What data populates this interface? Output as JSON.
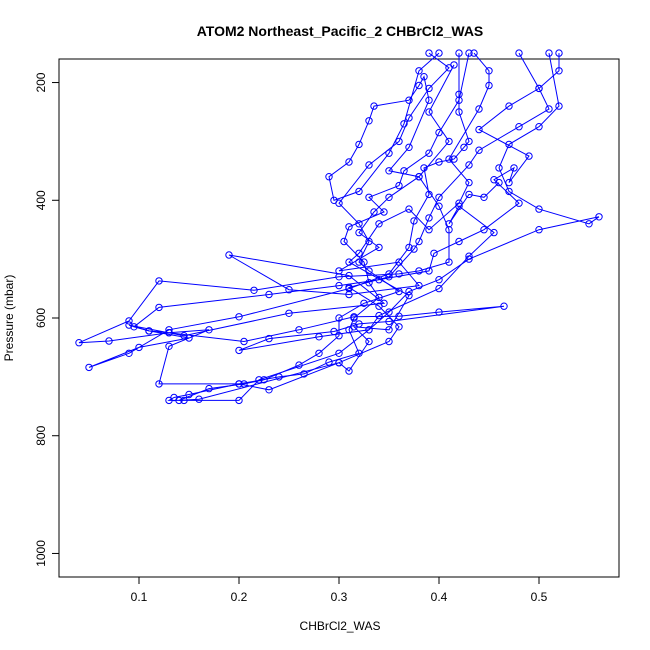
{
  "chart_data": {
    "type": "line",
    "title": "ATOM2 Northeast_Pacific_2 CHBrCl2_WAS",
    "xlabel": "CHBrCl2_WAS",
    "ylabel": "Pressure (mbar)",
    "xlim": [
      0.02,
      0.58
    ],
    "ylim": [
      1040,
      160
    ],
    "y_inverted": true,
    "grid": false,
    "marker": "open-circle",
    "line_color": "#0000ff",
    "xticks": [
      0.1,
      0.2,
      0.3,
      0.4,
      0.5
    ],
    "xtick_labels": [
      "0.1",
      "0.2",
      "0.3",
      "0.4",
      "0.5"
    ],
    "yticks": [
      200,
      400,
      600,
      800,
      1000
    ],
    "ytick_labels": [
      "200",
      "400",
      "600",
      "800",
      "1000"
    ],
    "series": [
      {
        "points": [
          [
            0.415,
            170
          ],
          [
            0.39,
            250
          ],
          [
            0.41,
            300
          ],
          [
            0.38,
            360
          ],
          [
            0.35,
            395
          ],
          [
            0.335,
            420
          ],
          [
            0.32,
            455
          ],
          [
            0.34,
            480
          ],
          [
            0.3,
            520
          ],
          [
            0.36,
            505
          ],
          [
            0.38,
            545
          ],
          [
            0.31,
            560
          ],
          [
            0.25,
            552
          ],
          [
            0.19,
            493
          ],
          [
            0.31,
            528
          ],
          [
            0.345,
            575
          ],
          [
            0.25,
            592
          ],
          [
            0.145,
            630
          ],
          [
            0.09,
            612
          ],
          [
            0.11,
            622
          ],
          [
            0.13,
            625
          ],
          [
            0.17,
            620
          ],
          [
            0.13,
            648
          ],
          [
            0.12,
            712
          ],
          [
            0.2,
            712
          ],
          [
            0.23,
            722
          ],
          [
            0.3,
            676
          ],
          [
            0.31,
            690
          ],
          [
            0.33,
            640
          ],
          [
            0.315,
            615
          ],
          [
            0.35,
            620
          ],
          [
            0.37,
            562
          ],
          [
            0.31,
            505
          ],
          [
            0.32,
            490
          ],
          [
            0.34,
            440
          ],
          [
            0.37,
            415
          ],
          [
            0.39,
            450
          ],
          [
            0.42,
            405
          ],
          [
            0.43,
            370
          ],
          [
            0.41,
            330
          ],
          [
            0.44,
            245
          ],
          [
            0.45,
            205
          ],
          [
            0.45,
            180
          ],
          [
            0.435,
            150
          ]
        ]
      },
      {
        "points": [
          [
            0.52,
            150
          ],
          [
            0.52,
            180
          ],
          [
            0.5,
            210
          ],
          [
            0.47,
            240
          ],
          [
            0.44,
            280
          ],
          [
            0.49,
            325
          ],
          [
            0.47,
            370
          ],
          [
            0.475,
            345
          ],
          [
            0.455,
            365
          ],
          [
            0.48,
            405
          ],
          [
            0.445,
            450
          ],
          [
            0.42,
            470
          ],
          [
            0.395,
            490
          ],
          [
            0.39,
            520
          ],
          [
            0.34,
            535
          ],
          [
            0.3,
            545
          ],
          [
            0.23,
            560
          ],
          [
            0.12,
            582
          ],
          [
            0.095,
            615
          ],
          [
            0.11,
            622
          ],
          [
            0.15,
            634
          ],
          [
            0.1,
            650
          ],
          [
            0.05,
            684
          ],
          [
            0.09,
            660
          ],
          [
            0.13,
            620
          ],
          [
            0.2,
            598
          ],
          [
            0.31,
            550
          ],
          [
            0.35,
            525
          ],
          [
            0.37,
            480
          ],
          [
            0.375,
            435
          ],
          [
            0.39,
            390
          ],
          [
            0.385,
            345
          ],
          [
            0.4,
            335
          ],
          [
            0.415,
            330
          ],
          [
            0.425,
            310
          ],
          [
            0.43,
            300
          ],
          [
            0.42,
            250
          ],
          [
            0.42,
            220
          ],
          [
            0.42,
            150
          ]
        ]
      },
      {
        "points": [
          [
            0.39,
            150
          ],
          [
            0.41,
            175
          ],
          [
            0.39,
            210
          ],
          [
            0.37,
            260
          ],
          [
            0.36,
            300
          ],
          [
            0.33,
            340
          ],
          [
            0.3,
            405
          ],
          [
            0.32,
            440
          ],
          [
            0.33,
            470
          ],
          [
            0.32,
            505
          ],
          [
            0.33,
            520
          ],
          [
            0.36,
            555
          ],
          [
            0.325,
            575
          ],
          [
            0.3,
            600
          ],
          [
            0.3,
            630
          ],
          [
            0.28,
            660
          ],
          [
            0.26,
            680
          ],
          [
            0.225,
            705
          ],
          [
            0.205,
            712
          ],
          [
            0.17,
            720
          ],
          [
            0.14,
            740
          ],
          [
            0.16,
            738
          ],
          [
            0.3,
            676
          ],
          [
            0.35,
            640
          ],
          [
            0.36,
            615
          ],
          [
            0.34,
            580
          ],
          [
            0.31,
            548
          ],
          [
            0.35,
            530
          ],
          [
            0.375,
            483
          ],
          [
            0.38,
            470
          ],
          [
            0.39,
            430
          ],
          [
            0.4,
            395
          ],
          [
            0.43,
            340
          ],
          [
            0.44,
            315
          ],
          [
            0.48,
            275
          ],
          [
            0.51,
            245
          ],
          [
            0.5,
            210
          ],
          [
            0.48,
            150
          ]
        ]
      },
      {
        "points": [
          [
            0.4,
            150
          ],
          [
            0.38,
            180
          ],
          [
            0.365,
            270
          ],
          [
            0.35,
            320
          ],
          [
            0.32,
            385
          ],
          [
            0.295,
            400
          ],
          [
            0.29,
            360
          ],
          [
            0.31,
            335
          ],
          [
            0.32,
            305
          ],
          [
            0.33,
            265
          ],
          [
            0.335,
            240
          ],
          [
            0.37,
            230
          ],
          [
            0.38,
            205
          ],
          [
            0.385,
            190
          ],
          [
            0.39,
            230
          ],
          [
            0.37,
            310
          ],
          [
            0.35,
            350
          ],
          [
            0.38,
            360
          ],
          [
            0.4,
            410
          ],
          [
            0.41,
            450
          ],
          [
            0.41,
            505
          ],
          [
            0.38,
            520
          ],
          [
            0.36,
            525
          ],
          [
            0.3,
            530
          ],
          [
            0.215,
            553
          ],
          [
            0.12,
            537
          ],
          [
            0.09,
            605
          ],
          [
            0.04,
            642
          ],
          [
            0.07,
            639
          ],
          [
            0.13,
            625
          ],
          [
            0.205,
            640
          ],
          [
            0.26,
            620
          ],
          [
            0.315,
            598
          ],
          [
            0.36,
            597
          ],
          [
            0.4,
            590
          ],
          [
            0.465,
            580
          ],
          [
            0.35,
            606
          ],
          [
            0.32,
            610
          ],
          [
            0.295,
            623
          ],
          [
            0.23,
            635
          ],
          [
            0.2,
            655
          ],
          [
            0.28,
            632
          ],
          [
            0.33,
            620
          ],
          [
            0.34,
            596
          ],
          [
            0.4,
            550
          ],
          [
            0.43,
            495
          ],
          [
            0.455,
            455
          ],
          [
            0.42,
            410
          ],
          [
            0.41,
            440
          ],
          [
            0.43,
            390
          ],
          [
            0.445,
            395
          ],
          [
            0.46,
            370
          ]
        ]
      },
      {
        "points": [
          [
            0.43,
            150
          ],
          [
            0.42,
            230
          ],
          [
            0.4,
            285
          ],
          [
            0.39,
            320
          ],
          [
            0.365,
            350
          ],
          [
            0.36,
            375
          ],
          [
            0.33,
            395
          ],
          [
            0.345,
            420
          ],
          [
            0.31,
            445
          ],
          [
            0.305,
            470
          ],
          [
            0.325,
            505
          ],
          [
            0.33,
            540
          ],
          [
            0.34,
            565
          ],
          [
            0.315,
            600
          ],
          [
            0.31,
            620
          ],
          [
            0.32,
            660
          ],
          [
            0.29,
            675
          ],
          [
            0.265,
            695
          ],
          [
            0.24,
            700
          ],
          [
            0.2,
            712
          ],
          [
            0.15,
            730
          ],
          [
            0.135,
            735
          ],
          [
            0.13,
            740
          ],
          [
            0.145,
            740
          ],
          [
            0.2,
            740
          ],
          [
            0.22,
            705
          ],
          [
            0.3,
            660
          ],
          [
            0.33,
            620
          ],
          [
            0.35,
            590
          ],
          [
            0.37,
            555
          ],
          [
            0.4,
            535
          ],
          [
            0.43,
            500
          ],
          [
            0.5,
            450
          ],
          [
            0.56,
            428
          ],
          [
            0.55,
            440
          ],
          [
            0.5,
            415
          ],
          [
            0.47,
            385
          ],
          [
            0.46,
            345
          ],
          [
            0.47,
            305
          ],
          [
            0.5,
            275
          ],
          [
            0.52,
            240
          ],
          [
            0.51,
            150
          ]
        ]
      }
    ]
  }
}
